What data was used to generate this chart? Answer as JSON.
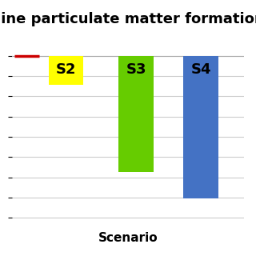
{
  "title": "Fine particulate matter formation",
  "xlabel": "Scenario",
  "categories": [
    "S2",
    "S3",
    "S4"
  ],
  "values": [
    0.18,
    0.72,
    0.88
  ],
  "bar_colors": [
    "#ffff00",
    "#66cc00",
    "#4472c4"
  ],
  "reference_line_y": 0.0,
  "reference_line_color": "#cc0000",
  "bar_width": 0.65,
  "ylim": [
    -1.0,
    0.05
  ],
  "xlim": [
    -0.5,
    3.8
  ],
  "background_color": "#ffffff",
  "grid_color": "#cccccc",
  "title_fontsize": 13,
  "xlabel_fontsize": 11,
  "label_fontsize": 13
}
